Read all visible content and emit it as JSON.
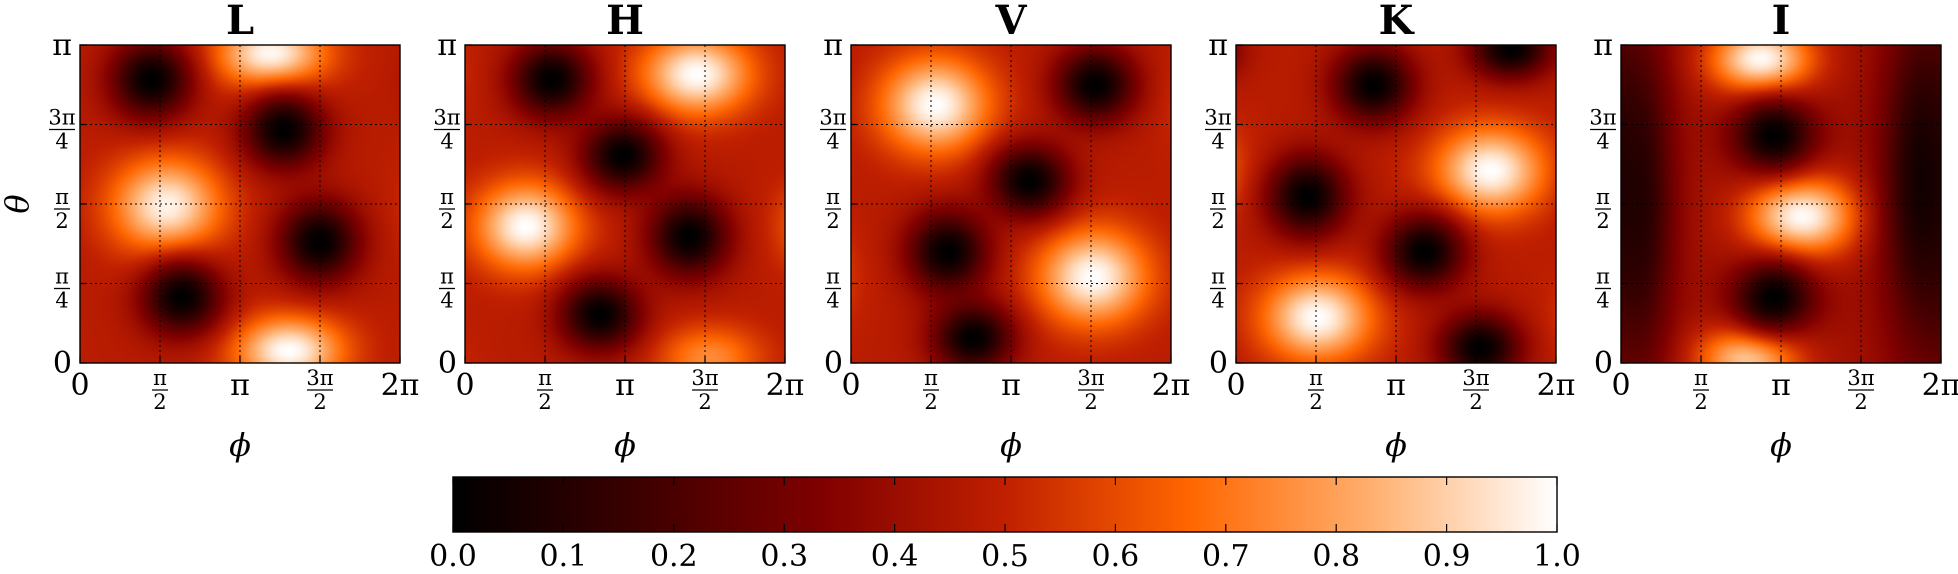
{
  "colormap": {
    "name": "gist_heat",
    "stops": [
      "#000000",
      "#3c0000",
      "#800000",
      "#c02000",
      "#ff6600",
      "#ffb070",
      "#ffffff"
    ]
  },
  "chart_data": {
    "type": "heatmap",
    "x_label": "ϕ",
    "y_label": "θ",
    "x_range": [
      0,
      6.283185
    ],
    "y_range": [
      0,
      3.141593
    ],
    "x_ticks": [
      {
        "value": 0,
        "label": "0"
      },
      {
        "value": 1.570796,
        "num": "π",
        "den": "2"
      },
      {
        "value": 3.141593,
        "label": "π"
      },
      {
        "value": 4.712389,
        "num": "3π",
        "den": "2"
      },
      {
        "value": 6.283185,
        "label": "2π"
      }
    ],
    "y_ticks": [
      {
        "value": 0,
        "label": "0"
      },
      {
        "value": 0.785398,
        "num": "π",
        "den": "4"
      },
      {
        "value": 1.570796,
        "num": "π",
        "den": "2"
      },
      {
        "value": 2.356194,
        "num": "3π",
        "den": "4"
      },
      {
        "value": 3.141593,
        "label": "π"
      }
    ],
    "grid": true,
    "colorbar": {
      "range": [
        0.0,
        1.0
      ],
      "ticks": [
        "0.0",
        "0.1",
        "0.2",
        "0.3",
        "0.4",
        "0.5",
        "0.6",
        "0.7",
        "0.8",
        "0.9",
        "1.0"
      ],
      "placement": "bottom"
    },
    "panels": [
      {
        "title": "L",
        "background": 0.48,
        "blobs": [
          {
            "phi": 3.75,
            "theta": 3.05,
            "value": 1.0,
            "phi_width": 0.75,
            "theta_width": 0.24
          },
          {
            "phi": 1.7,
            "theta": 1.55,
            "value": 0.98,
            "phi_width": 0.75,
            "theta_width": 0.33
          },
          {
            "phi": 4.1,
            "theta": 0.12,
            "value": 1.0,
            "phi_width": 0.75,
            "theta_width": 0.24
          },
          {
            "phi": 1.4,
            "theta": 2.8,
            "value": 0.0,
            "phi_width": 0.55,
            "theta_width": 0.27
          },
          {
            "phi": 4.0,
            "theta": 2.3,
            "value": 0.0,
            "phi_width": 0.55,
            "theta_width": 0.26
          },
          {
            "phi": 4.7,
            "theta": 1.2,
            "value": 0.0,
            "phi_width": 0.55,
            "theta_width": 0.28
          },
          {
            "phi": 2.0,
            "theta": 0.65,
            "value": 0.0,
            "phi_width": 0.55,
            "theta_width": 0.26
          }
        ]
      },
      {
        "title": "H",
        "background": 0.48,
        "blobs": [
          {
            "phi": 4.55,
            "theta": 2.85,
            "value": 1.0,
            "phi_width": 0.75,
            "theta_width": 0.28
          },
          {
            "phi": 1.2,
            "theta": 1.35,
            "value": 1.0,
            "phi_width": 0.7,
            "theta_width": 0.3
          },
          {
            "phi": 4.8,
            "theta": 0.05,
            "value": 0.75,
            "phi_width": 0.7,
            "theta_width": 0.22
          },
          {
            "phi": 1.7,
            "theta": 2.8,
            "value": 0.0,
            "phi_width": 0.55,
            "theta_width": 0.26
          },
          {
            "phi": 3.1,
            "theta": 2.05,
            "value": 0.0,
            "phi_width": 0.55,
            "theta_width": 0.25
          },
          {
            "phi": 4.4,
            "theta": 1.25,
            "value": 0.0,
            "phi_width": 0.55,
            "theta_width": 0.28
          },
          {
            "phi": 2.65,
            "theta": 0.48,
            "value": 0.0,
            "phi_width": 0.55,
            "theta_width": 0.25
          }
        ]
      },
      {
        "title": "V",
        "background": 0.48,
        "blobs": [
          {
            "phi": 1.65,
            "theta": 2.55,
            "value": 1.0,
            "phi_width": 0.75,
            "theta_width": 0.33
          },
          {
            "phi": 4.75,
            "theta": 0.85,
            "value": 1.0,
            "phi_width": 0.75,
            "theta_width": 0.33
          },
          {
            "phi": 4.8,
            "theta": 2.75,
            "value": 0.0,
            "phi_width": 0.55,
            "theta_width": 0.26
          },
          {
            "phi": 3.5,
            "theta": 1.8,
            "value": 0.0,
            "phi_width": 0.55,
            "theta_width": 0.25
          },
          {
            "phi": 1.9,
            "theta": 1.1,
            "value": 0.0,
            "phi_width": 0.55,
            "theta_width": 0.28
          },
          {
            "phi": 2.4,
            "theta": 0.25,
            "value": 0.0,
            "phi_width": 0.55,
            "theta_width": 0.24
          }
        ]
      },
      {
        "title": "K",
        "background": 0.48,
        "blobs": [
          {
            "phi": 5.0,
            "theta": 1.9,
            "value": 1.0,
            "phi_width": 0.75,
            "theta_width": 0.3
          },
          {
            "phi": 1.6,
            "theta": 0.45,
            "value": 1.0,
            "phi_width": 0.75,
            "theta_width": 0.3
          },
          {
            "phi": 2.7,
            "theta": 2.75,
            "value": 0.0,
            "phi_width": 0.55,
            "theta_width": 0.26
          },
          {
            "phi": 1.4,
            "theta": 1.65,
            "value": 0.0,
            "phi_width": 0.55,
            "theta_width": 0.28
          },
          {
            "phi": 3.7,
            "theta": 1.1,
            "value": 0.0,
            "phi_width": 0.55,
            "theta_width": 0.26
          },
          {
            "phi": 4.8,
            "theta": 0.15,
            "value": 0.0,
            "phi_width": 0.55,
            "theta_width": 0.24
          },
          {
            "phi": 5.4,
            "theta": 3.1,
            "value": 0.0,
            "phi_width": 0.55,
            "theta_width": 0.2
          }
        ]
      },
      {
        "title": "I",
        "background": 0.42,
        "blobs": [
          {
            "phi": 2.75,
            "theta": 3.0,
            "value": 1.0,
            "phi_width": 0.7,
            "theta_width": 0.24
          },
          {
            "phi": 3.55,
            "theta": 1.45,
            "value": 1.0,
            "phi_width": 0.75,
            "theta_width": 0.28
          },
          {
            "phi": 2.5,
            "theta": 0.05,
            "value": 0.9,
            "phi_width": 0.7,
            "theta_width": 0.22
          },
          {
            "phi": 3.0,
            "theta": 2.25,
            "value": 0.0,
            "phi_width": 0.55,
            "theta_width": 0.25
          },
          {
            "phi": 3.0,
            "theta": 0.65,
            "value": 0.0,
            "phi_width": 0.55,
            "theta_width": 0.25
          },
          {
            "phi": 0.4,
            "theta": 1.57,
            "value": 0.12,
            "phi_width": 0.45,
            "theta_width": 1.2
          },
          {
            "phi": 5.9,
            "theta": 1.8,
            "value": 0.05,
            "phi_width": 0.55,
            "theta_width": 1.2
          }
        ]
      }
    ]
  }
}
